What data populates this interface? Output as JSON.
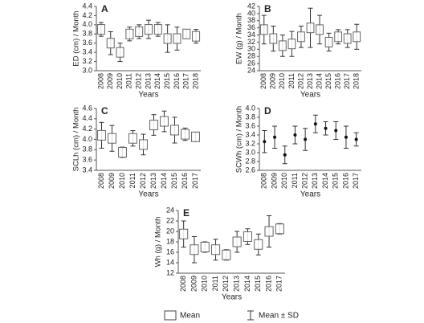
{
  "chart_data": [
    {
      "type": "errorbar",
      "label": "A",
      "ylabel": "ED (cm) / Month",
      "xlabel": "Years",
      "marker": "box",
      "categories": [
        "2008",
        "2009",
        "2010",
        "2011",
        "2012",
        "2013",
        "2014",
        "2015",
        "2016",
        "2017",
        "2018"
      ],
      "values": [
        3.9,
        3.6,
        3.4,
        3.8,
        3.85,
        3.9,
        3.9,
        3.7,
        3.7,
        3.8,
        3.75
      ],
      "errors": [
        0.15,
        0.25,
        0.2,
        0.15,
        0.15,
        0.2,
        0.15,
        0.3,
        0.25,
        0.1,
        0.15
      ],
      "ylim": [
        3.0,
        4.4
      ],
      "yticks": [
        {
          "value": 3.0,
          "label": "3.0"
        },
        3.2,
        3.4,
        3.6,
        3.8,
        {
          "value": 4.0,
          "label": "4.0"
        },
        4.2,
        4.4
      ]
    },
    {
      "type": "errorbar",
      "label": "B",
      "ylabel": "EW (g) / Month",
      "xlabel": "Years",
      "marker": "box",
      "categories": [
        "2008",
        "2009",
        "2010",
        "2011",
        "2012",
        "2013",
        "2014",
        "2015",
        "2016",
        "2017",
        "2018"
      ],
      "values": [
        35.5,
        33,
        31,
        31.5,
        33.5,
        36,
        35.5,
        32,
        33.5,
        33,
        33.5
      ],
      "errors": [
        4,
        3.5,
        3,
        3.5,
        3,
        5.5,
        4,
        2.5,
        2,
        2.5,
        3.5
      ],
      "ylim": [
        24,
        42
      ],
      "yticks": [
        24,
        26,
        28,
        30,
        32,
        34,
        36,
        38,
        40,
        42
      ]
    },
    {
      "type": "errorbar",
      "label": "C",
      "ylabel": "SCLh (cm) / Month",
      "xlabel": "Years",
      "marker": "box",
      "categories": [
        "2008",
        "2009",
        "2010",
        "2011",
        "2012",
        "2013",
        "2014",
        "2015",
        "2016",
        "2017"
      ],
      "values": [
        4.08,
        4.02,
        3.75,
        4.02,
        3.9,
        4.28,
        4.35,
        4.18,
        4.1,
        4.05
      ],
      "errors": [
        0.25,
        0.25,
        0.1,
        0.15,
        0.2,
        0.2,
        0.2,
        0.25,
        0.12,
        0.08
      ],
      "ylim": [
        3.4,
        4.6
      ],
      "yticks": [
        3.4,
        3.6,
        3.8,
        {
          "value": 4.0,
          "label": "4.0"
        },
        4.2,
        4.4,
        4.6
      ]
    },
    {
      "type": "errorbar",
      "label": "D",
      "ylabel": "SCWh (cm) / Month",
      "xlabel": "Years",
      "marker": "dot",
      "categories": [
        "2008",
        "2009",
        "2010",
        "2011",
        "2012",
        "2013",
        "2014",
        "2015",
        "2016",
        "2017"
      ],
      "values": [
        3.25,
        3.35,
        2.95,
        3.4,
        3.3,
        3.65,
        3.55,
        3.5,
        3.35,
        3.3
      ],
      "errors": [
        0.25,
        0.25,
        0.2,
        0.2,
        0.25,
        0.2,
        0.15,
        0.2,
        0.25,
        0.15
      ],
      "ylim": [
        2.6,
        4.0
      ],
      "yticks": [
        2.6,
        2.8,
        {
          "value": 3.0,
          "label": "3.0"
        },
        3.2,
        3.4,
        3.6,
        3.8,
        {
          "value": 4.0,
          "label": "4.0"
        }
      ]
    },
    {
      "type": "errorbar",
      "label": "E",
      "ylabel": "Wh (g) / Month",
      "xlabel": "Years",
      "marker": "box",
      "categories": [
        "2008",
        "2009",
        "2010",
        "2011",
        "2012",
        "2013",
        "2014",
        "2015",
        "2016",
        "2017"
      ],
      "values": [
        19.5,
        16.5,
        17,
        16.5,
        15.5,
        18,
        19,
        17.5,
        20,
        20.5
      ],
      "errors": [
        2.5,
        2.5,
        1,
        2,
        1,
        2,
        1.5,
        2,
        3,
        1
      ],
      "ylim": [
        12,
        24
      ],
      "yticks": [
        12,
        14,
        16,
        18,
        20,
        22,
        24
      ]
    }
  ],
  "legend": {
    "mean": "Mean",
    "sd": "Mean ± SD"
  }
}
